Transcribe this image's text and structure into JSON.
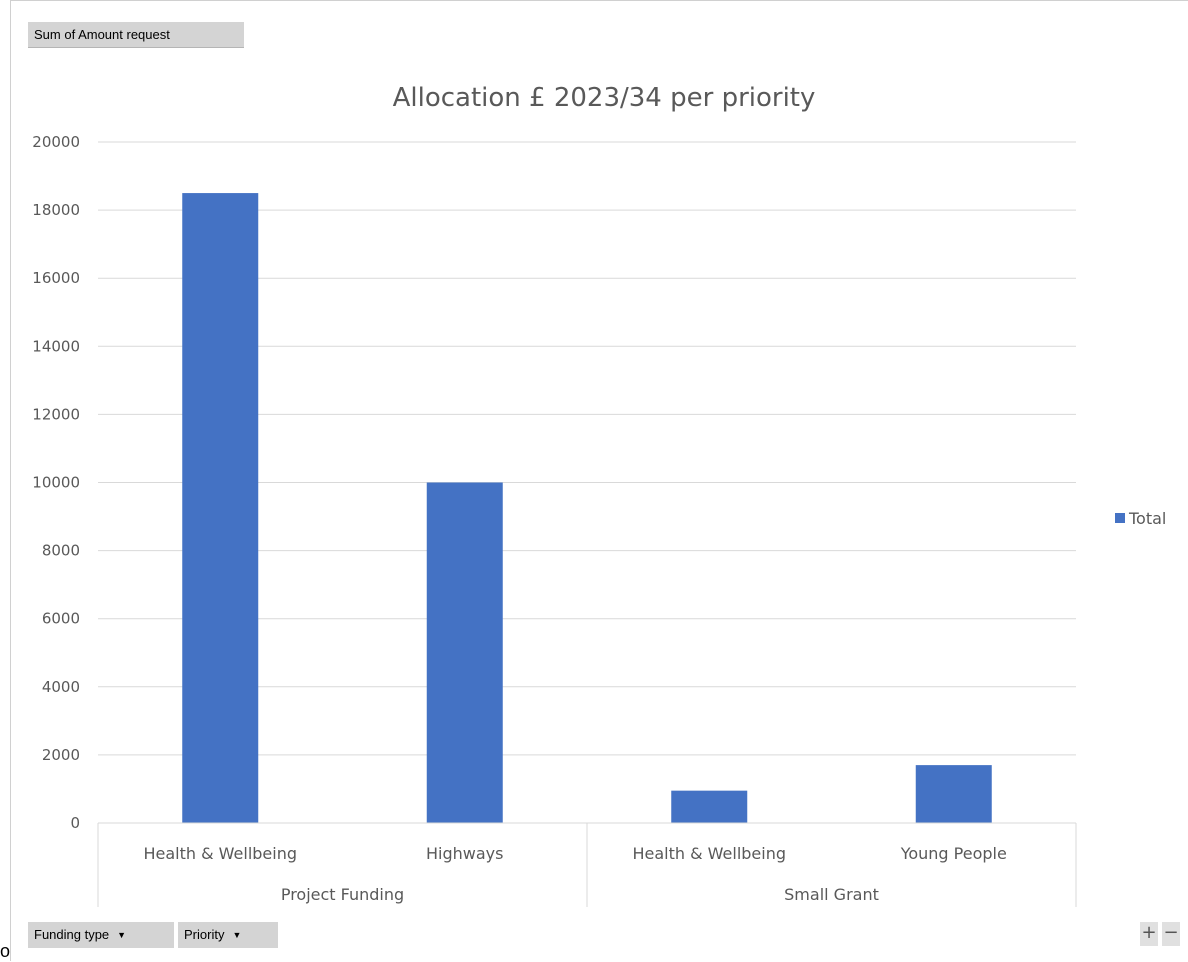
{
  "pivot": {
    "value_field": "Sum of Amount request",
    "row_fields": [
      {
        "label": "Funding type",
        "icon": "dropdown-icon"
      },
      {
        "label": "Priority",
        "icon": "dropdown-icon"
      }
    ],
    "zoom_in": "+",
    "zoom_out": "−"
  },
  "stray_text": "o",
  "chart_data": {
    "type": "bar",
    "title": "Allocation £ 2023/34 per priority",
    "xlabel": "",
    "ylabel": "",
    "ylim": [
      0,
      20000
    ],
    "yticks": [
      0,
      2000,
      4000,
      6000,
      8000,
      10000,
      12000,
      14000,
      16000,
      18000,
      20000
    ],
    "grid": true,
    "legend_position": "right",
    "groups": [
      {
        "name": "Project Funding",
        "categories": [
          "Health & Wellbeing",
          "Highways"
        ]
      },
      {
        "name": "Small Grant",
        "categories": [
          "Health & Wellbeing",
          "Young People"
        ]
      }
    ],
    "categories": [
      "Health & Wellbeing",
      "Highways",
      "Health & Wellbeing",
      "Young People"
    ],
    "series": [
      {
        "name": "Total",
        "color": "#4472c4",
        "values": [
          18500,
          10000,
          950,
          1700
        ]
      }
    ]
  }
}
